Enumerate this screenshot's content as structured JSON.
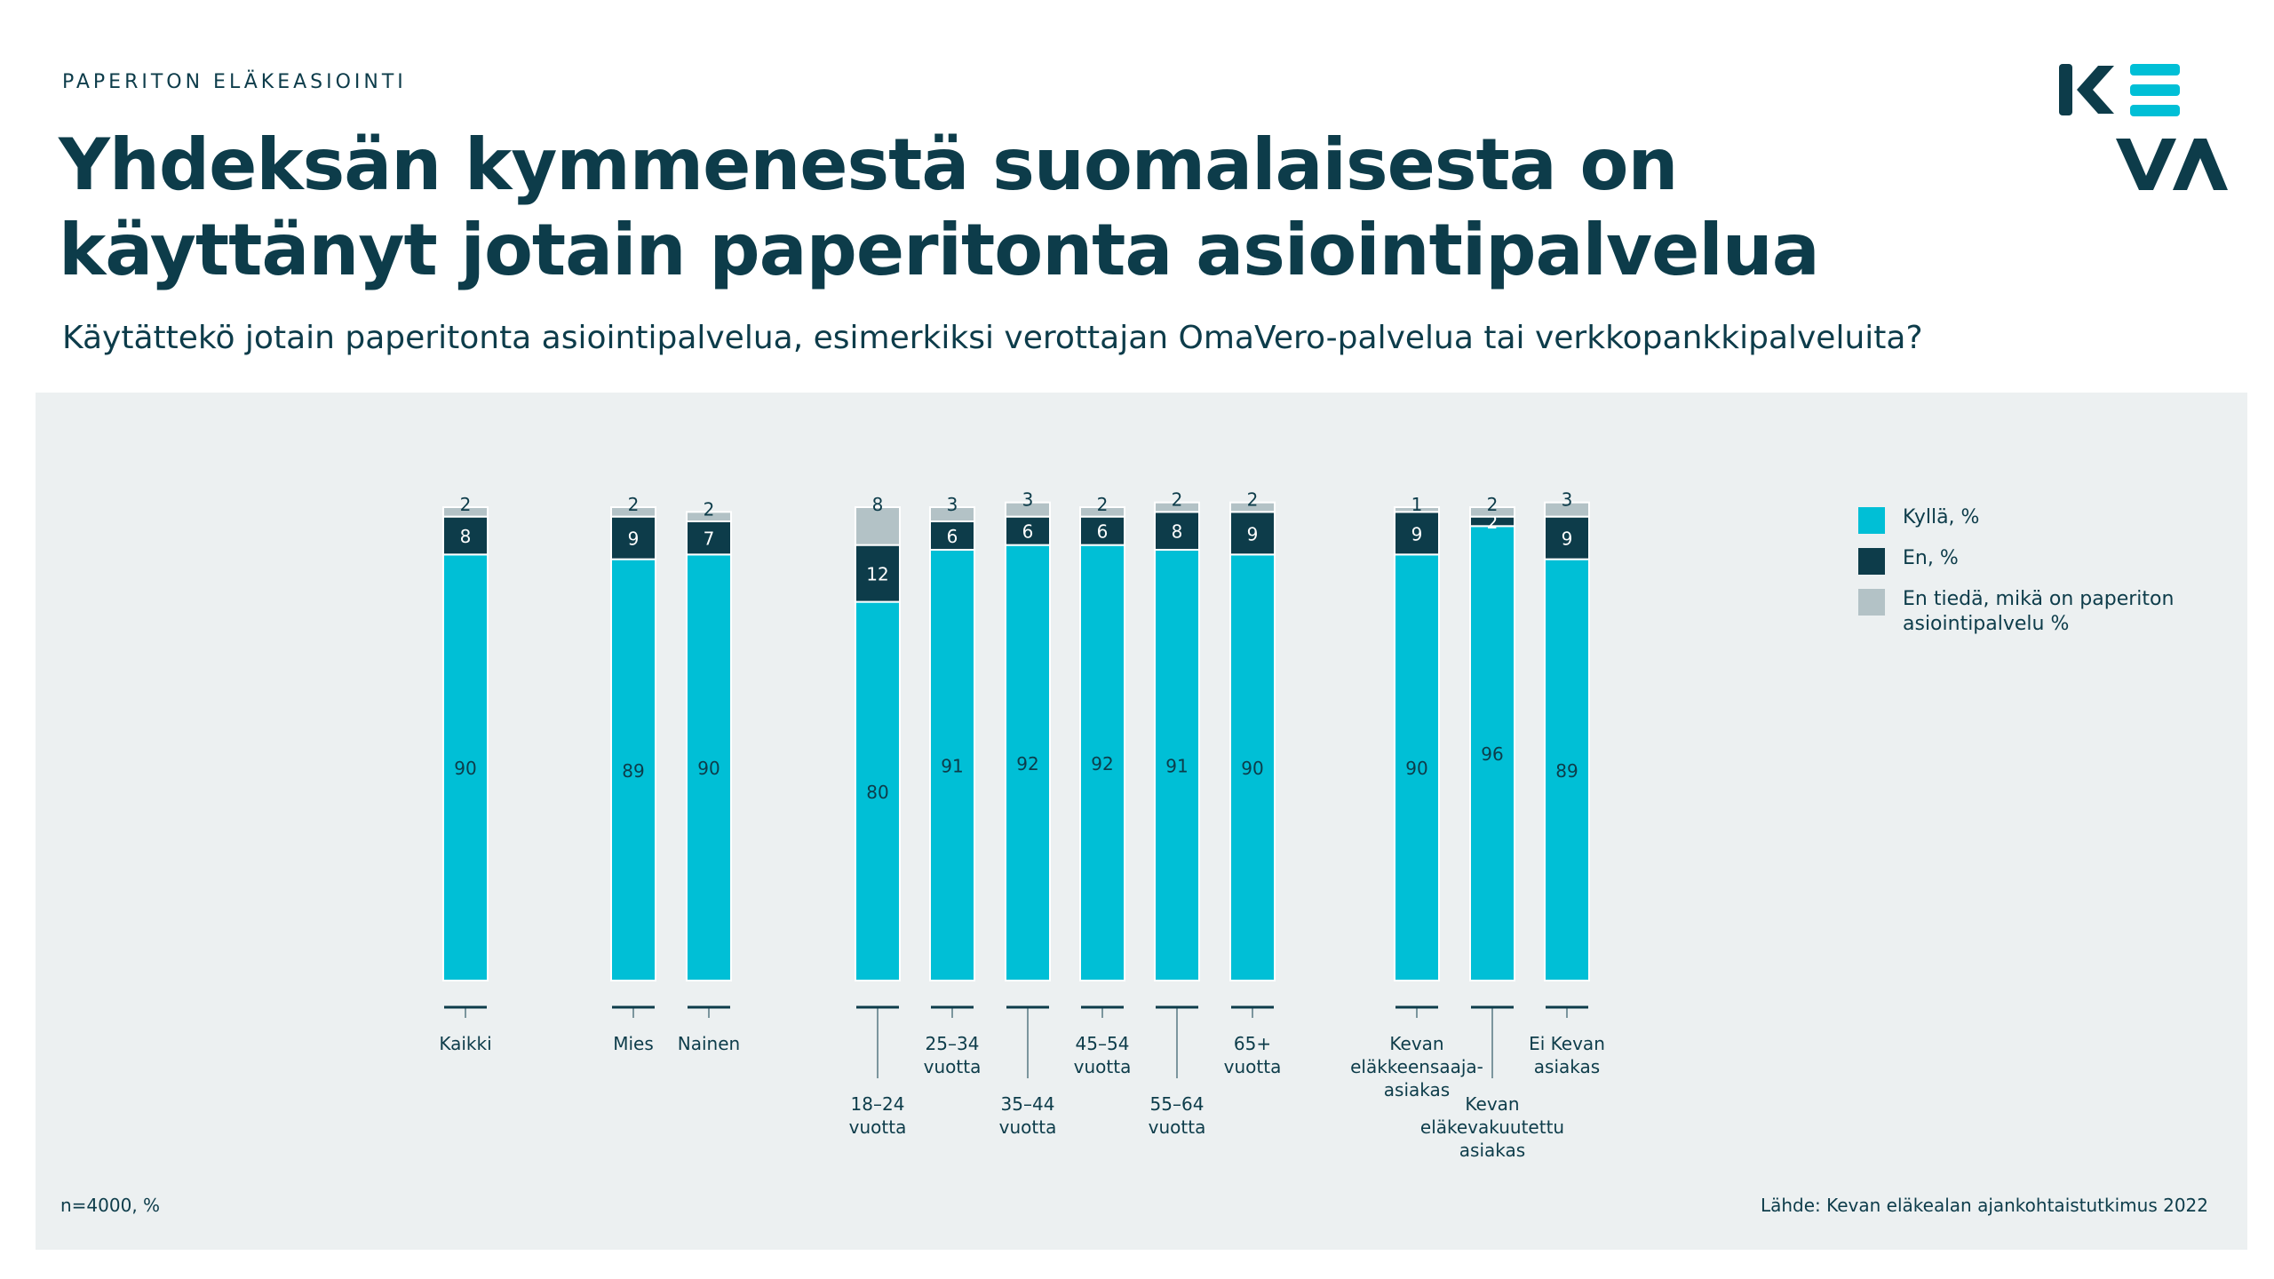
{
  "header": {
    "kicker": "PAPERITON ELÄKEASIOINTI",
    "title": "Yhdeksän kymmenestä suomalaisesta on käyttänyt jotain paperitonta asiointipalvelua",
    "subtitle": "Käytättekö jotain paperitonta asiointipalvelua, esimerkiksi verottajan OmaVero-palvelua tai verkkopankkipalveluita?"
  },
  "logo": {
    "text": "KEVA",
    "icon": "keva-logo"
  },
  "colors": {
    "yes": "#00bfd6",
    "no": "#0d3c4a",
    "unknown": "#b3c2c6",
    "panel": "#ecf0f1",
    "text": "#0d3c4a"
  },
  "chart_data": {
    "type": "bar",
    "stacked": true,
    "unit": "%",
    "categories": [
      "Kaikki",
      "Mies",
      "Nainen",
      "18–24 vuotta",
      "25–34 vuotta",
      "35–44 vuotta",
      "45–54 vuotta",
      "55–64 vuotta",
      "65+ vuotta",
      "Kevan eläkkeensaaja-asiakas",
      "Kevan eläkevakuutettu asiakas",
      "Ei Kevan asiakas"
    ],
    "category_label_lines": [
      [
        "Kaikki"
      ],
      [
        "Mies"
      ],
      [
        "Nainen"
      ],
      [
        "18–24",
        "vuotta"
      ],
      [
        "25–34",
        "vuotta"
      ],
      [
        "35–44",
        "vuotta"
      ],
      [
        "45–54",
        "vuotta"
      ],
      [
        "55–64",
        "vuotta"
      ],
      [
        "65+",
        "vuotta"
      ],
      [
        "Kevan",
        "eläkkeensaaja-",
        "asiakas"
      ],
      [
        "Kevan",
        "eläkevakuutettu",
        "asiakas"
      ],
      [
        "Ei Kevan",
        "asiakas"
      ]
    ],
    "groups": [
      [
        0
      ],
      [
        1,
        2
      ],
      [
        3,
        4,
        5,
        6,
        7,
        8
      ],
      [
        9,
        10,
        11
      ]
    ],
    "series": [
      {
        "name": "Kyllä, %",
        "color": "#00bfd6",
        "values": [
          90,
          89,
          90,
          80,
          91,
          92,
          92,
          91,
          90,
          90,
          96,
          89
        ]
      },
      {
        "name": "En, %",
        "color": "#0d3c4a",
        "values": [
          8,
          9,
          7,
          12,
          6,
          6,
          6,
          8,
          9,
          9,
          2,
          9
        ]
      },
      {
        "name": "En tiedä, mikä on paperiton asiointipalvelu %",
        "color": "#b3c2c6",
        "values": [
          2,
          2,
          2,
          8,
          3,
          3,
          2,
          2,
          2,
          1,
          2,
          3
        ]
      }
    ],
    "ylim": [
      0,
      100
    ],
    "legend": "right"
  },
  "footer": {
    "n_note": "n=4000, %",
    "source": "Lähde: Kevan eläkealan ajankohtaistutkimus 2022"
  }
}
